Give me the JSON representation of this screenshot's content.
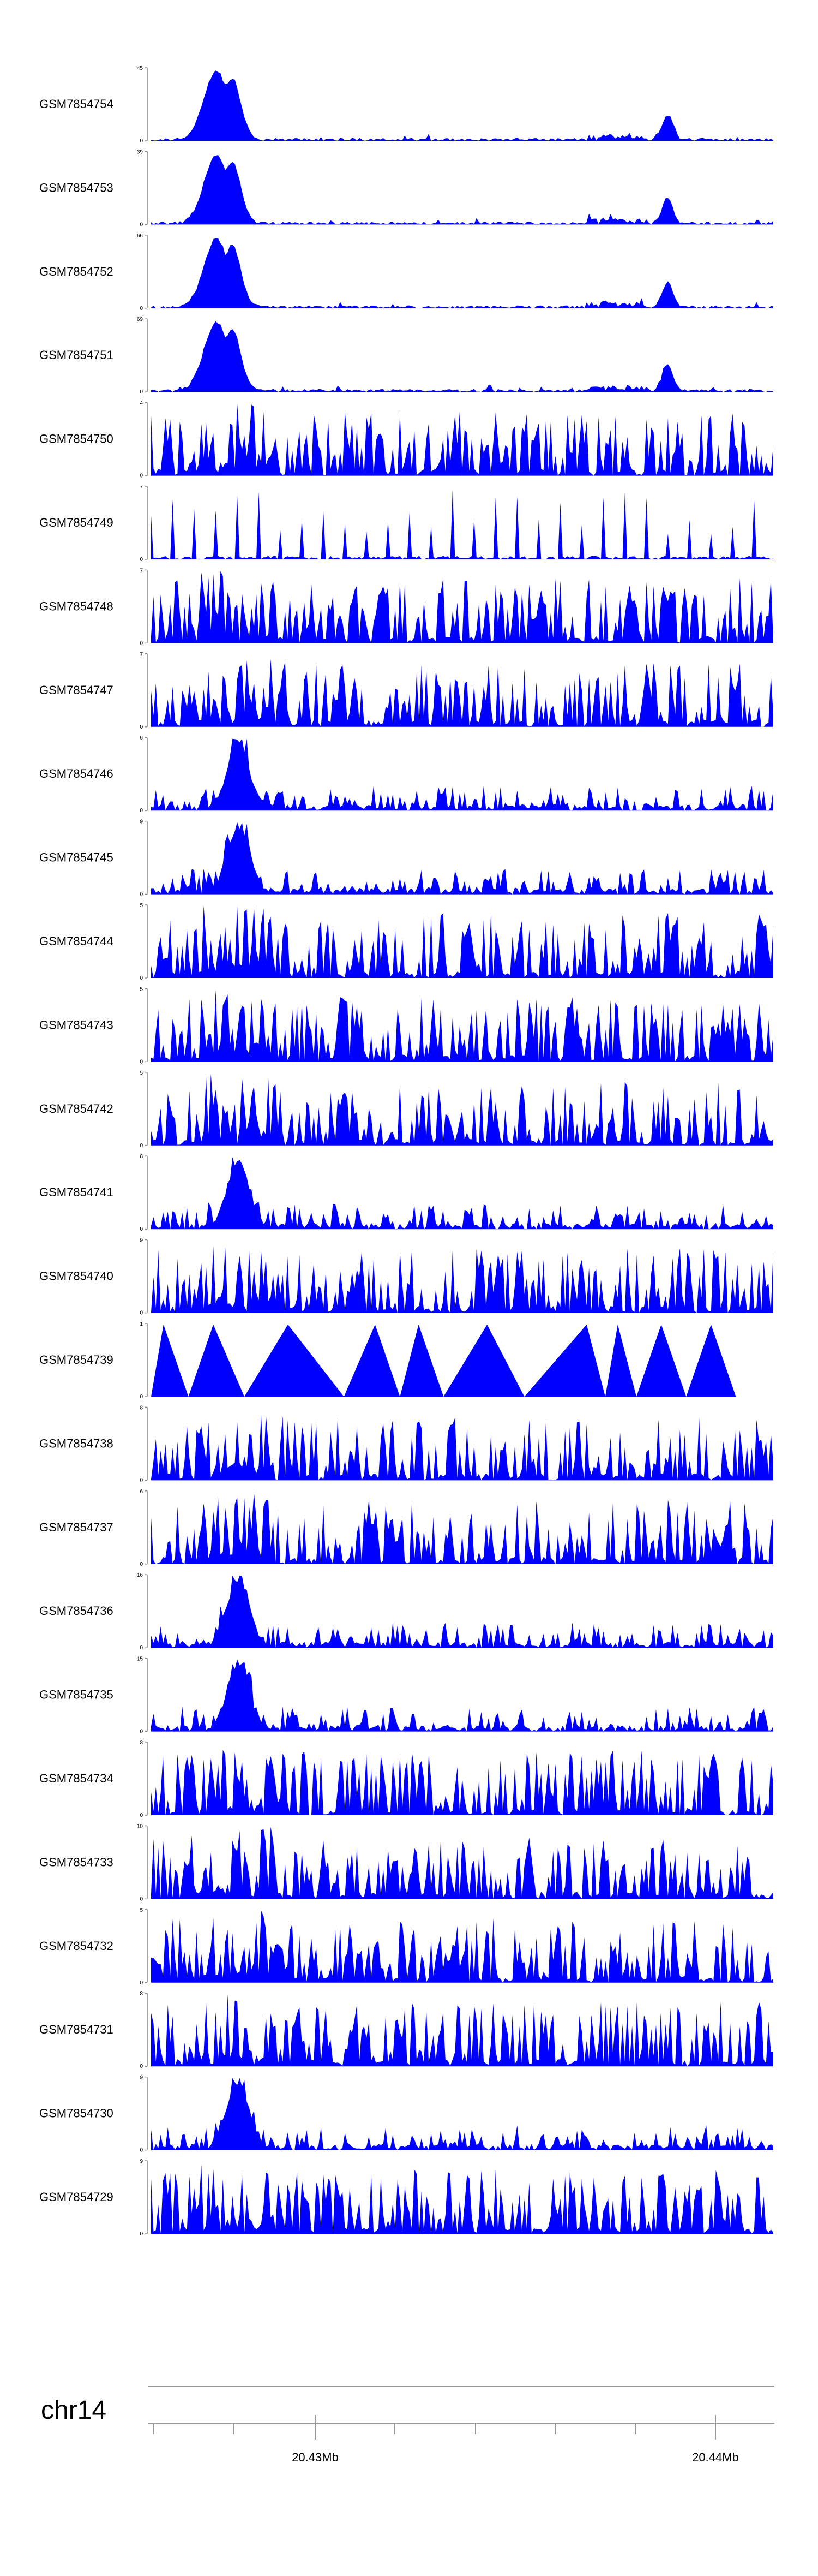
{
  "chart_data": {
    "type": "area",
    "title": "",
    "chromosome": "chr14",
    "axis_ticks": [
      "20.43Mb",
      "20.44Mb"
    ],
    "color": "#0000ff",
    "axis_color": "#999999",
    "tracks": [
      {
        "name": "GSM7854754",
        "ymin": "0",
        "ymax": "45",
        "profile": "sharp"
      },
      {
        "name": "GSM7854753",
        "ymin": "0",
        "ymax": "39",
        "profile": "sharp"
      },
      {
        "name": "GSM7854752",
        "ymin": "0",
        "ymax": "66",
        "profile": "sharp"
      },
      {
        "name": "GSM7854751",
        "ymin": "0",
        "ymax": "69",
        "profile": "sharp"
      },
      {
        "name": "GSM7854750",
        "ymin": "0",
        "ymax": "4",
        "profile": "noisy"
      },
      {
        "name": "GSM7854749",
        "ymin": "0",
        "ymax": "7",
        "profile": "sparse"
      },
      {
        "name": "GSM7854748",
        "ymin": "0",
        "ymax": "7",
        "profile": "noisy"
      },
      {
        "name": "GSM7854747",
        "ymin": "0",
        "ymax": "7",
        "profile": "noisy"
      },
      {
        "name": "GSM7854746",
        "ymin": "0",
        "ymax": "6",
        "profile": "peaked"
      },
      {
        "name": "GSM7854745",
        "ymin": "0",
        "ymax": "9",
        "profile": "peaked"
      },
      {
        "name": "GSM7854744",
        "ymin": "0",
        "ymax": "5",
        "profile": "noisy"
      },
      {
        "name": "GSM7854743",
        "ymin": "0",
        "ymax": "5",
        "profile": "noisy"
      },
      {
        "name": "GSM7854742",
        "ymin": "0",
        "ymax": "5",
        "profile": "noisy"
      },
      {
        "name": "GSM7854741",
        "ymin": "0",
        "ymax": "8",
        "profile": "peaked"
      },
      {
        "name": "GSM7854740",
        "ymin": "0",
        "ymax": "9",
        "profile": "noisy"
      },
      {
        "name": "GSM7854739",
        "ymin": "0",
        "ymax": "1",
        "profile": "triangles"
      },
      {
        "name": "GSM7854738",
        "ymin": "0",
        "ymax": "8",
        "profile": "noisy"
      },
      {
        "name": "GSM7854737",
        "ymin": "0",
        "ymax": "6",
        "profile": "noisy"
      },
      {
        "name": "GSM7854736",
        "ymin": "0",
        "ymax": "16",
        "profile": "peaked"
      },
      {
        "name": "GSM7854735",
        "ymin": "0",
        "ymax": "15",
        "profile": "peaked"
      },
      {
        "name": "GSM7854734",
        "ymin": "0",
        "ymax": "8",
        "profile": "noisy"
      },
      {
        "name": "GSM7854733",
        "ymin": "0",
        "ymax": "10",
        "profile": "noisy"
      },
      {
        "name": "GSM7854732",
        "ymin": "0",
        "ymax": "5",
        "profile": "noisy"
      },
      {
        "name": "GSM7854731",
        "ymin": "0",
        "ymax": "8",
        "profile": "noisy"
      },
      {
        "name": "GSM7854730",
        "ymin": "0",
        "ymax": "9",
        "profile": "peaked"
      },
      {
        "name": "GSM7854729",
        "ymin": "0",
        "ymax": "9",
        "profile": "noisy"
      }
    ]
  }
}
